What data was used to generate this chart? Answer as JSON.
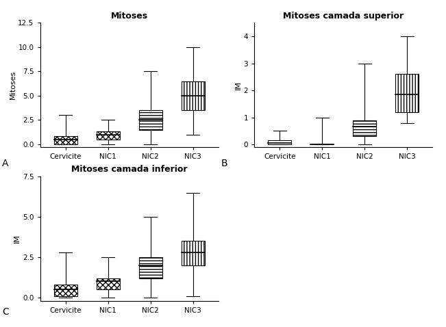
{
  "chart_A": {
    "title": "Mitoses",
    "ylabel": "Mitoses",
    "ylim": [
      -0.3,
      12.5
    ],
    "yticks": [
      0.0,
      2.5,
      5.0,
      7.5,
      10.0,
      12.5
    ],
    "ytick_labels": [
      "0.0",
      "2.5",
      "5.0",
      "7.5",
      "10.0",
      "12.5"
    ],
    "categories": [
      "Cervicite",
      "NIC1",
      "NIC2",
      "NIC3"
    ],
    "whisker_low": [
      0.0,
      0.0,
      0.0,
      1.0
    ],
    "q1": [
      0.0,
      0.5,
      1.5,
      3.5
    ],
    "median": [
      0.5,
      1.0,
      2.5,
      5.0
    ],
    "q3": [
      0.8,
      1.3,
      3.5,
      6.5
    ],
    "whisker_high": [
      3.0,
      2.5,
      7.5,
      10.0
    ],
    "hatch": [
      "xxxx",
      "xxxx",
      "----",
      "||||"
    ],
    "label": "A"
  },
  "chart_B": {
    "title": "Mitoses camada superior",
    "ylabel": "IM",
    "ylim": [
      -0.1,
      4.5
    ],
    "yticks": [
      0,
      1,
      2,
      3,
      4
    ],
    "ytick_labels": [
      "0",
      "1",
      "2",
      "3",
      "4"
    ],
    "categories": [
      "Cervicite",
      "NIC1",
      "NIC2",
      "NIC3"
    ],
    "whisker_low": [
      0.0,
      0.0,
      0.0,
      0.8
    ],
    "q1": [
      0.0,
      0.0,
      0.3,
      1.2
    ],
    "median": [
      0.05,
      0.0,
      0.65,
      1.85
    ],
    "q3": [
      0.15,
      0.0,
      0.9,
      2.6
    ],
    "whisker_high": [
      0.5,
      1.0,
      3.0,
      4.0
    ],
    "hatch": [
      "",
      "",
      "----",
      "||||"
    ],
    "label": "B"
  },
  "chart_C": {
    "title": "Mitoses camada inferior",
    "ylabel": "IM",
    "ylim": [
      -0.2,
      7.5
    ],
    "yticks": [
      0.0,
      2.5,
      5.0,
      7.5
    ],
    "ytick_labels": [
      "0.0",
      "2.5",
      "5.0",
      "7.5"
    ],
    "categories": [
      "Cervicite",
      "NIC1",
      "NIC2",
      "NIC3"
    ],
    "whisker_low": [
      0.0,
      0.0,
      0.0,
      0.1
    ],
    "q1": [
      0.1,
      0.5,
      1.2,
      2.0
    ],
    "median": [
      0.5,
      1.0,
      2.0,
      2.8
    ],
    "q3": [
      0.8,
      1.2,
      2.5,
      3.5
    ],
    "whisker_high": [
      2.8,
      2.5,
      5.0,
      6.5
    ],
    "hatch": [
      "xxxx",
      "xxxx",
      "----",
      "||||"
    ],
    "label": "C"
  },
  "box_width": 0.55,
  "line_color": "#000000",
  "bg_color": "#ffffff",
  "title_fontsize": 9,
  "label_fontsize": 8,
  "tick_fontsize": 7.5
}
